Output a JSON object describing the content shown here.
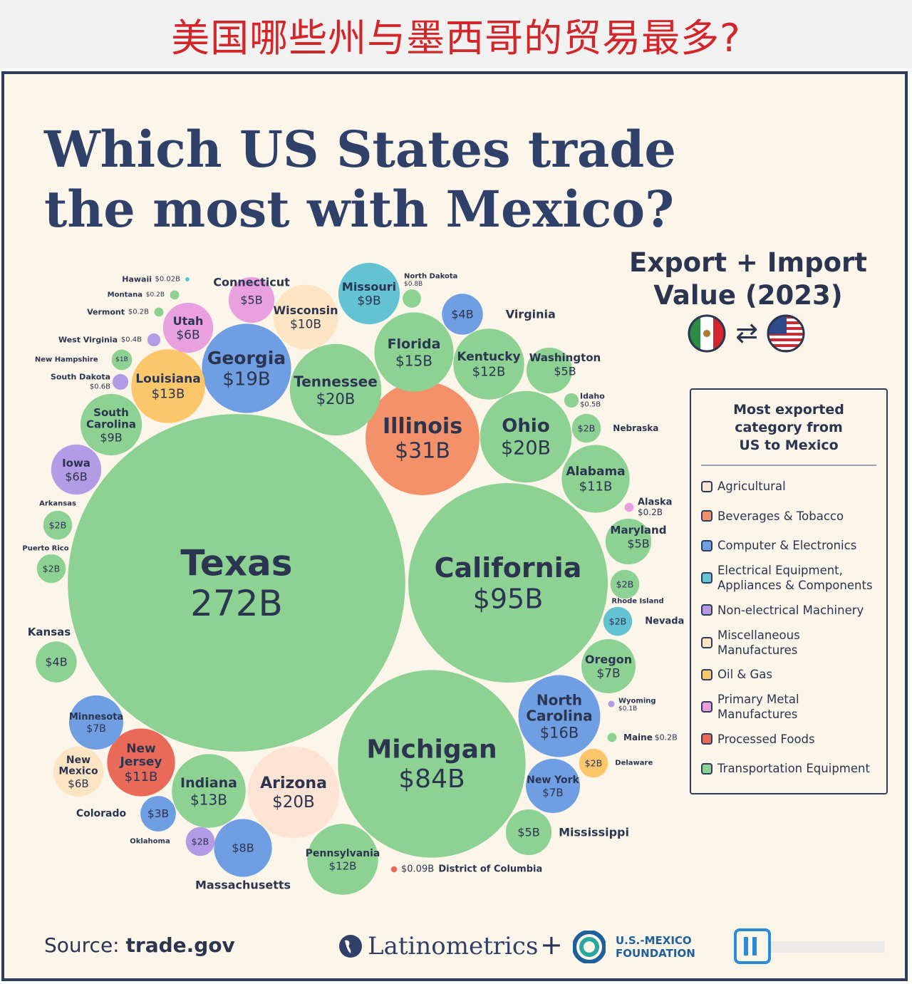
{
  "banner": {
    "text": "美国哪些州与墨西哥的贸易最多?"
  },
  "header": {
    "title_line1": "Which US States trade",
    "title_line2": "the most with Mexico?",
    "subtitle_line1": "Export + Import",
    "subtitle_line2": "Value (2023)",
    "swap_symbol": "⇄"
  },
  "legend": {
    "title_line1": "Most exported",
    "title_line2": "category from",
    "title_line3": "US to Mexico",
    "items": [
      {
        "line1": "Agricultural",
        "line2": "",
        "color": "#fde3d3"
      },
      {
        "line1": "Beverages & Tobacco",
        "line2": "",
        "color": "#f3916a"
      },
      {
        "line1": "Computer & Electronics",
        "line2": "",
        "color": "#6f9ee2"
      },
      {
        "line1": "Electrical Equipment,",
        "line2": "Appliances & Components",
        "color": "#63c3d3"
      },
      {
        "line1": "Non-electrical Machinery",
        "line2": "",
        "color": "#b39be6"
      },
      {
        "line1": "Miscellaneous",
        "line2": "Manufactures",
        "color": "#fde4c2"
      },
      {
        "line1": "Oil & Gas",
        "line2": "",
        "color": "#fcc66a"
      },
      {
        "line1": "Primary Metal",
        "line2": "Manufactures",
        "color": "#e8a0df"
      },
      {
        "line1": "Processed Foods",
        "line2": "",
        "color": "#ea6a5a"
      },
      {
        "line1": "Transportation Equipment",
        "line2": "",
        "color": "#8dd193"
      }
    ]
  },
  "footer": {
    "source_prefix": "Source: ",
    "source_value": "trade.gov",
    "brand1": "Latinometrics",
    "plus": "+",
    "brand2_line1": "U.S.-MEXICO",
    "brand2_line2": "FOUNDATION"
  },
  "chart_data": {
    "type": "bubble",
    "title": "Which US States trade the most with Mexico?",
    "subtitle": "Export + Import Value (2023)",
    "unit": "USD billions",
    "series": [
      {
        "state": "Texas",
        "label": "272B",
        "value": 272,
        "category": "Transportation Equipment"
      },
      {
        "state": "California",
        "label": "$95B",
        "value": 95,
        "category": "Transportation Equipment"
      },
      {
        "state": "Michigan",
        "label": "$84B",
        "value": 84,
        "category": "Transportation Equipment"
      },
      {
        "state": "Illinois",
        "label": "$31B",
        "value": 31,
        "category": "Beverages & Tobacco"
      },
      {
        "state": "Tennessee",
        "label": "$20B",
        "value": 20,
        "category": "Transportation Equipment"
      },
      {
        "state": "Ohio",
        "label": "$20B",
        "value": 20,
        "category": "Transportation Equipment"
      },
      {
        "state": "Arizona",
        "label": "$20B",
        "value": 20,
        "category": "Agricultural"
      },
      {
        "state": "Georgia",
        "label": "$19B",
        "value": 19,
        "category": "Computer & Electronics"
      },
      {
        "state": "North Carolina",
        "label": "$16B",
        "value": 16,
        "category": "Computer & Electronics"
      },
      {
        "state": "Florida",
        "label": "$15B",
        "value": 15,
        "category": "Transportation Equipment"
      },
      {
        "state": "Louisiana",
        "label": "$13B",
        "value": 13,
        "category": "Oil & Gas"
      },
      {
        "state": "Indiana",
        "label": "$13B",
        "value": 13,
        "category": "Transportation Equipment"
      },
      {
        "state": "Kentucky",
        "label": "$12B",
        "value": 12,
        "category": "Transportation Equipment"
      },
      {
        "state": "Pennsylvania",
        "label": "$12B",
        "value": 12,
        "category": "Transportation Equipment"
      },
      {
        "state": "Alabama",
        "label": "$11B",
        "value": 11,
        "category": "Transportation Equipment"
      },
      {
        "state": "New Jersey",
        "label": "$11B",
        "value": 11,
        "category": "Processed Foods"
      },
      {
        "state": "Wisconsin",
        "label": "$10B",
        "value": 10,
        "category": "Miscellaneous Manufactures"
      },
      {
        "state": "Missouri",
        "label": "$9B",
        "value": 9,
        "category": "Electrical Equipment, Appliances & Components"
      },
      {
        "state": "South Carolina",
        "label": "$9B",
        "value": 9,
        "category": "Transportation Equipment"
      },
      {
        "state": "Massachusetts",
        "label": "$8B",
        "value": 8,
        "category": "Computer & Electronics"
      },
      {
        "state": "Oregon",
        "label": "$7B",
        "value": 7,
        "category": "Transportation Equipment"
      },
      {
        "state": "Minnesota",
        "label": "$7B",
        "value": 7,
        "category": "Computer & Electronics"
      },
      {
        "state": "New York",
        "label": "$7B",
        "value": 7,
        "category": "Computer & Electronics"
      },
      {
        "state": "Utah",
        "label": "$6B",
        "value": 6,
        "category": "Primary Metal Manufactures"
      },
      {
        "state": "Iowa",
        "label": "$6B",
        "value": 6,
        "category": "Non-electrical Machinery"
      },
      {
        "state": "New Mexico",
        "label": "$6B",
        "value": 6,
        "category": "Miscellaneous Manufactures"
      },
      {
        "state": "Connecticut",
        "label": "$5B",
        "value": 5,
        "category": "Primary Metal Manufactures"
      },
      {
        "state": "Washington",
        "label": "$5B",
        "value": 5,
        "category": "Transportation Equipment"
      },
      {
        "state": "Maryland",
        "label": "$5B",
        "value": 5,
        "category": "Transportation Equipment"
      },
      {
        "state": "Mississippi",
        "label": "$5B",
        "value": 5,
        "category": "Transportation Equipment"
      },
      {
        "state": "Virginia",
        "label": "$4B",
        "value": 4,
        "category": "Computer & Electronics"
      },
      {
        "state": "Kansas",
        "label": "$4B",
        "value": 4,
        "category": "Transportation Equipment"
      },
      {
        "state": "Colorado",
        "label": "$3B",
        "value": 3,
        "category": "Computer & Electronics"
      },
      {
        "state": "Nebraska",
        "label": "$2B",
        "value": 2,
        "category": "Transportation Equipment"
      },
      {
        "state": "Arkansas",
        "label": "$2B",
        "value": 2,
        "category": "Transportation Equipment"
      },
      {
        "state": "Puerto Rico",
        "label": "$2B",
        "value": 2,
        "category": "Transportation Equipment"
      },
      {
        "state": "Rhode Island",
        "label": "$2B",
        "value": 2,
        "category": "Transportation Equipment"
      },
      {
        "state": "Nevada",
        "label": "$2B",
        "value": 2,
        "category": "Electrical Equipment, Appliances & Components"
      },
      {
        "state": "Delaware",
        "label": "$2B",
        "value": 2,
        "category": "Oil & Gas"
      },
      {
        "state": "Oklahoma",
        "label": "$2B",
        "value": 2,
        "category": "Non-electrical Machinery"
      },
      {
        "state": "New Hampshire",
        "label": "$1B",
        "value": 1,
        "category": "Transportation Equipment"
      },
      {
        "state": "North Dakota",
        "label": "$0.8B",
        "value": 0.8,
        "category": "Transportation Equipment"
      },
      {
        "state": "South Dakota",
        "label": "$0.6B",
        "value": 0.6,
        "category": "Non-electrical Machinery"
      },
      {
        "state": "Idaho",
        "label": "$0.5B",
        "value": 0.5,
        "category": "Transportation Equipment"
      },
      {
        "state": "West Virginia",
        "label": "$0.4B",
        "value": 0.4,
        "category": "Non-electrical Machinery"
      },
      {
        "state": "Montana",
        "label": "$0.2B",
        "value": 0.2,
        "category": "Transportation Equipment"
      },
      {
        "state": "Vermont",
        "label": "$0.2B",
        "value": 0.2,
        "category": "Transportation Equipment"
      },
      {
        "state": "Alaska",
        "label": "$0.2B",
        "value": 0.2,
        "category": "Primary Metal Manufactures"
      },
      {
        "state": "Maine",
        "label": "$0.2B",
        "value": 0.2,
        "category": "Transportation Equipment"
      },
      {
        "state": "Wyoming",
        "label": "$0.1B",
        "value": 0.1,
        "category": "Non-electrical Machinery"
      },
      {
        "state": "District of Columbia",
        "label": "$0.09B",
        "value": 0.09,
        "category": "Processed Foods"
      },
      {
        "state": "Hawaii",
        "label": "$0.02B",
        "value": 0.02,
        "category": "Electrical Equipment, Appliances & Components"
      }
    ]
  }
}
